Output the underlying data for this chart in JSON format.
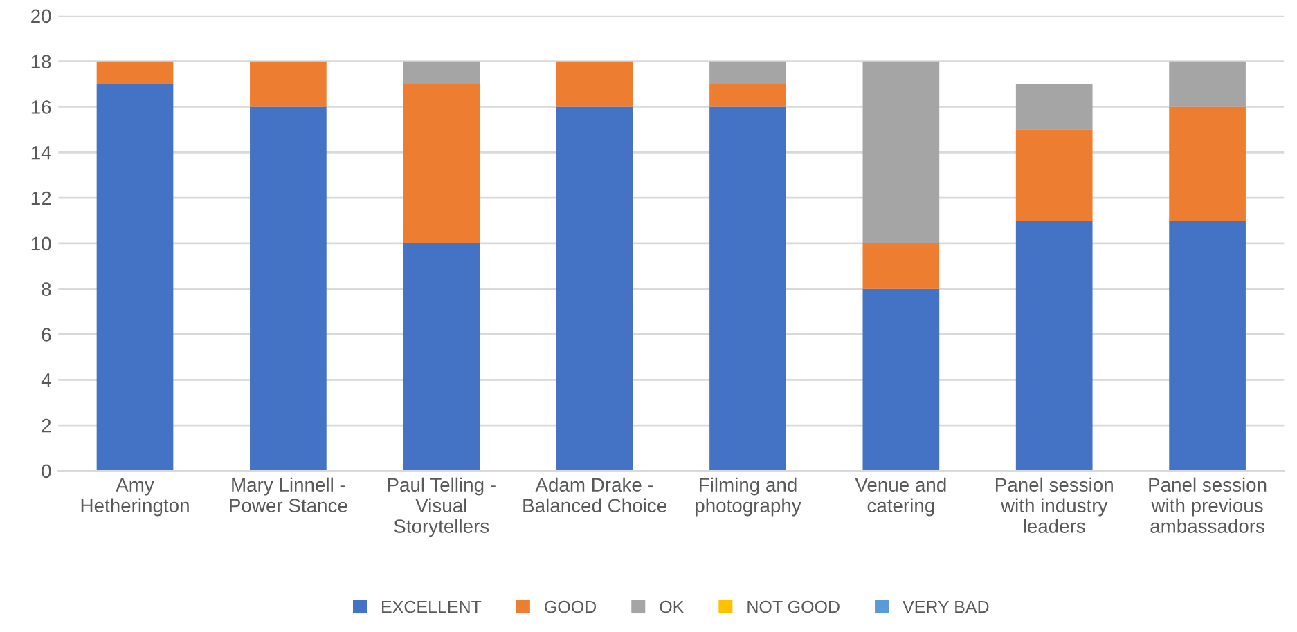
{
  "chart_data": {
    "type": "bar",
    "stacked": true,
    "categories": [
      "Amy Hetherington",
      "Mary Linnell - Power Stance",
      "Paul Telling - Visual Storytellers",
      "Adam Drake - Balanced Choice",
      "Filming and photography",
      "Venue and catering",
      "Panel session with industry leaders",
      "Panel session with previous ambassadors"
    ],
    "series": [
      {
        "name": "EXCELLENT",
        "color": "#4472c4",
        "values": [
          17,
          16,
          10,
          16,
          16,
          8,
          11,
          11
        ]
      },
      {
        "name": "GOOD",
        "color": "#ed7d31",
        "values": [
          1,
          2,
          7,
          2,
          1,
          2,
          4,
          5
        ]
      },
      {
        "name": "OK",
        "color": "#a5a5a5",
        "values": [
          0,
          0,
          1,
          0,
          1,
          8,
          2,
          2
        ]
      },
      {
        "name": "NOT GOOD",
        "color": "#ffc000",
        "values": [
          0,
          0,
          0,
          0,
          0,
          0,
          0,
          0
        ]
      },
      {
        "name": "VERY BAD",
        "color": "#5b9bd5",
        "values": [
          0,
          0,
          0,
          0,
          0,
          0,
          0,
          0
        ]
      }
    ],
    "ylim": [
      0,
      20
    ],
    "yticks": [
      0,
      2,
      4,
      6,
      8,
      10,
      12,
      14,
      16,
      18,
      20
    ],
    "grid": "y",
    "legend": "bottom"
  }
}
